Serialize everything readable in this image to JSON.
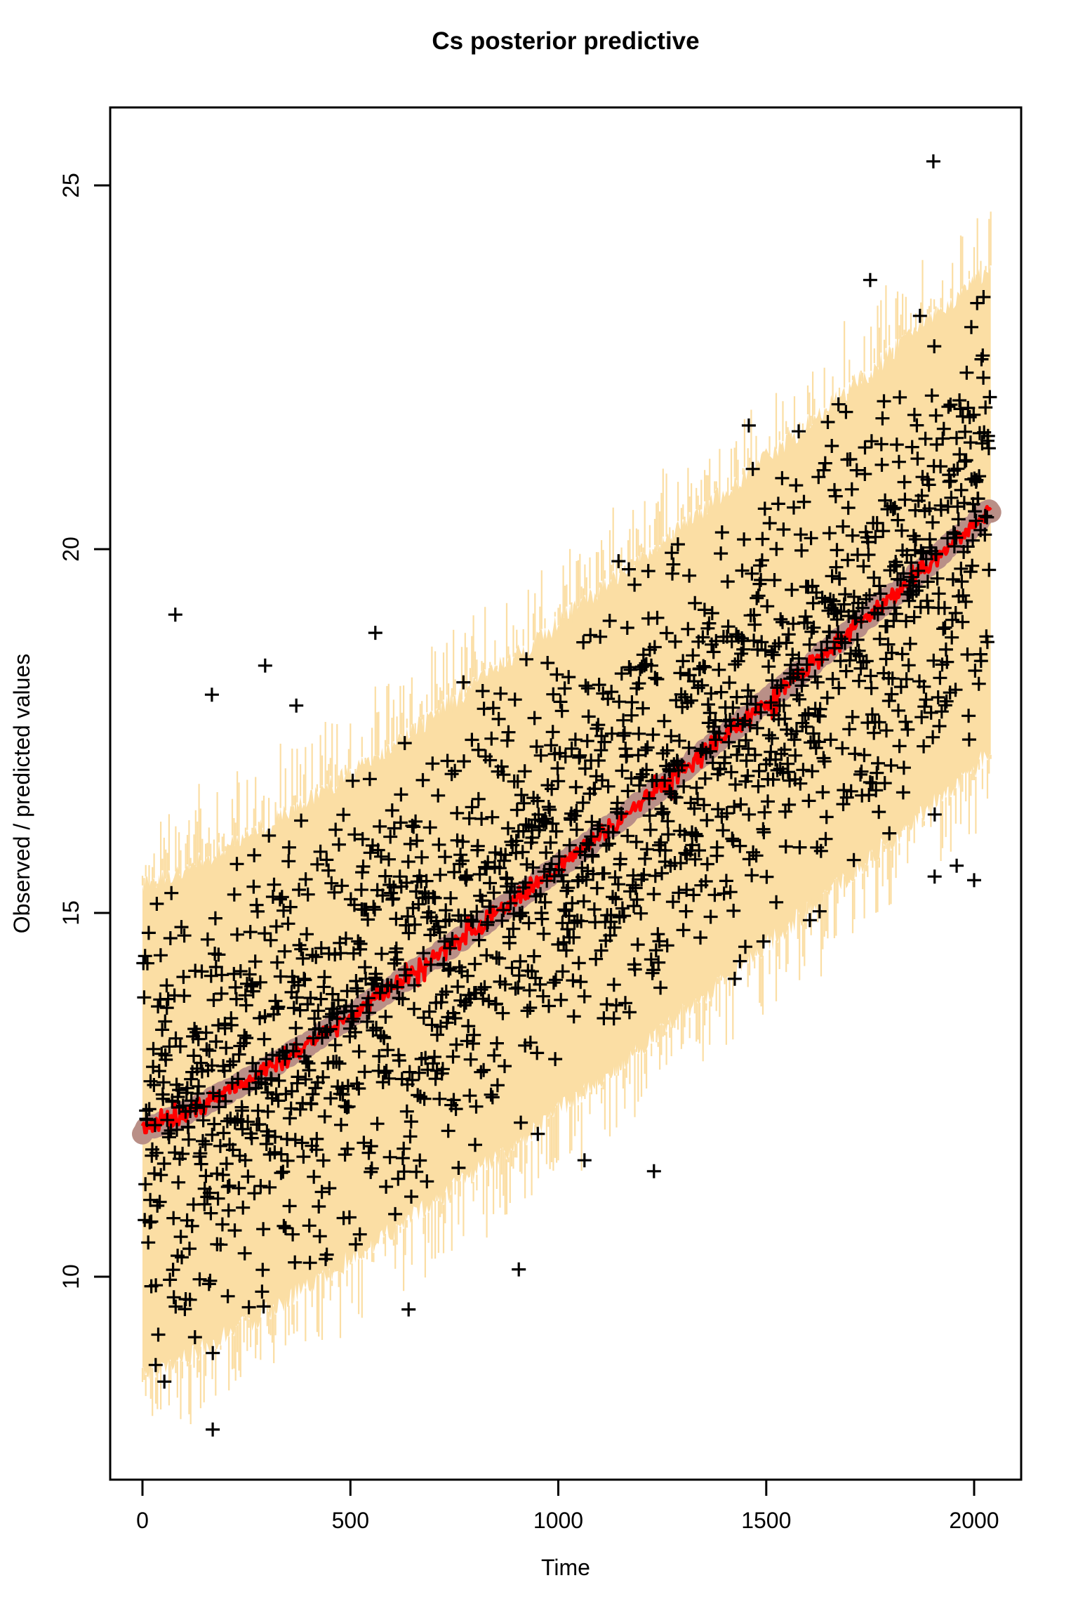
{
  "chart_data": {
    "type": "scatter",
    "title": "Cs posterior predictive",
    "xlabel": "Time",
    "ylabel": "Observed / predicted values",
    "x_ticks": [
      0,
      500,
      1000,
      1500,
      2000
    ],
    "y_ticks": [
      10,
      15,
      20,
      25
    ],
    "x_data_range": [
      0,
      2040
    ],
    "xlim": [
      -77,
      2113
    ],
    "ylim": [
      7.2,
      26.1
    ],
    "grid": "off",
    "legend": "none",
    "background_color": "#FFFFFF",
    "axis_color": "#000000",
    "trend": {
      "x": [
        0,
        128,
        256,
        384,
        512,
        640,
        768,
        896,
        1024,
        1152,
        1280,
        1408,
        1536,
        1664,
        1792,
        1920,
        2032
      ],
      "median": [
        12.0,
        12.31,
        12.71,
        13.15,
        13.63,
        14.13,
        14.65,
        15.18,
        15.74,
        16.3,
        16.88,
        17.47,
        18.08,
        18.69,
        19.31,
        19.94,
        20.5
      ]
    },
    "band": {
      "halfwidth": 3.3,
      "color": "#FBDEA4",
      "edge_style": "jagged-vertical-segments"
    },
    "inner_band": {
      "halfwidth": 0.15,
      "color": "#B98F87"
    },
    "median_line": {
      "color": "#FF0000"
    },
    "observations": {
      "marker": "+",
      "color": "#000000",
      "n": 1700,
      "residual_sd": 1.5,
      "seed": 1234567
    },
    "outliers": [
      [
        79,
        19.1
      ],
      [
        167,
        18.0
      ],
      [
        295,
        18.4
      ],
      [
        370,
        17.85
      ],
      [
        560,
        18.85
      ],
      [
        1902,
        25.33
      ],
      [
        1750,
        23.7
      ],
      [
        1458,
        21.7
      ],
      [
        169,
        7.9
      ],
      [
        640,
        9.55
      ],
      [
        905,
        10.1
      ],
      [
        1063,
        11.6
      ],
      [
        1230,
        11.45
      ],
      [
        1905,
        15.5
      ],
      [
        1958,
        15.65
      ],
      [
        2000,
        15.45
      ]
    ]
  }
}
